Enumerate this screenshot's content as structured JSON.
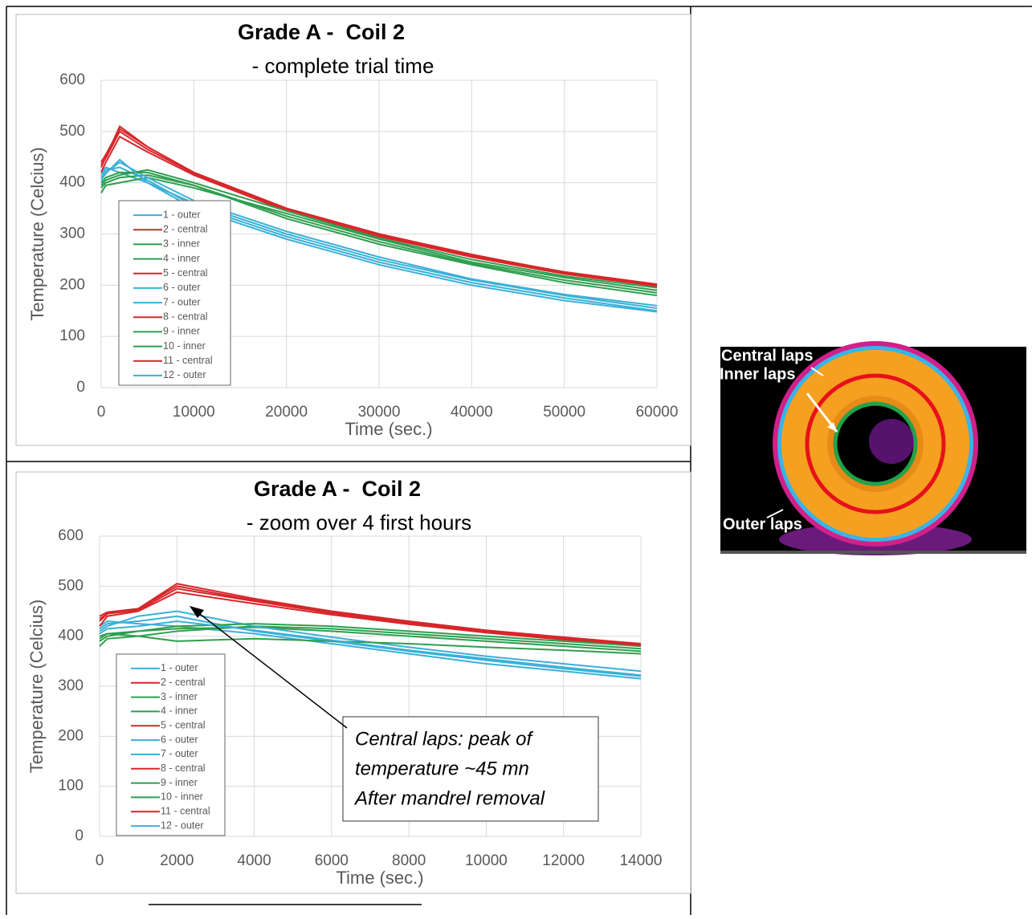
{
  "chart_data": [
    {
      "type": "line",
      "title": "Grade A -  Coil 2",
      "subtitle": "- complete trial time",
      "x_label": "Time (sec.)",
      "y_label": "Temperature (Celcius)",
      "x": [
        0,
        500,
        2000,
        5000,
        10000,
        20000,
        30000,
        40000,
        50000,
        60000
      ],
      "xlim": [
        0,
        60000
      ],
      "xticks": [
        0,
        10000,
        20000,
        30000,
        40000,
        50000,
        60000
      ],
      "ylim": [
        0,
        600
      ],
      "yticks": [
        0,
        100,
        200,
        300,
        400,
        500,
        600
      ],
      "grid": true,
      "series": [
        {
          "name": "1 - outer",
          "color": "#3ab0d8",
          "values": [
            420,
            430,
            420,
            400,
            360,
            300,
            250,
            210,
            180,
            155
          ]
        },
        {
          "name": "2 - central",
          "color": "#d7262a",
          "values": [
            430,
            450,
            510,
            470,
            420,
            350,
            300,
            260,
            225,
            200
          ]
        },
        {
          "name": "3 - inner",
          "color": "#2e9e4f",
          "values": [
            390,
            400,
            410,
            415,
            395,
            330,
            280,
            240,
            205,
            180
          ]
        },
        {
          "name": "4 - inner",
          "color": "#2e9e4f",
          "values": [
            380,
            395,
            400,
            410,
            390,
            340,
            290,
            245,
            215,
            190
          ]
        },
        {
          "name": "5 - central",
          "color": "#d7262a",
          "values": [
            420,
            440,
            490,
            460,
            415,
            345,
            295,
            255,
            222,
            198
          ]
        },
        {
          "name": "6 - outer",
          "color": "#3ab0d8",
          "values": [
            410,
            420,
            440,
            410,
            365,
            305,
            255,
            212,
            182,
            160
          ]
        },
        {
          "name": "7 - outer",
          "color": "#3ab0d8",
          "values": [
            415,
            425,
            430,
            405,
            355,
            295,
            245,
            205,
            175,
            150
          ]
        },
        {
          "name": "8 - central",
          "color": "#d7262a",
          "values": [
            440,
            455,
            505,
            470,
            420,
            350,
            300,
            258,
            226,
            202
          ]
        },
        {
          "name": "9 - inner",
          "color": "#2e9e4f",
          "values": [
            400,
            410,
            420,
            420,
            395,
            335,
            285,
            242,
            210,
            185
          ]
        },
        {
          "name": "10 - inner",
          "color": "#2e9e4f",
          "values": [
            395,
            405,
            415,
            425,
            400,
            345,
            292,
            250,
            218,
            195
          ]
        },
        {
          "name": "11 - central",
          "color": "#d7262a",
          "values": [
            435,
            448,
            500,
            465,
            418,
            348,
            298,
            256,
            224,
            200
          ]
        },
        {
          "name": "12 - outer",
          "color": "#3ab0d8",
          "values": [
            405,
            418,
            445,
            400,
            350,
            290,
            240,
            200,
            170,
            148
          ]
        }
      ]
    },
    {
      "type": "line",
      "title": "Grade A -  Coil 2",
      "subtitle": "- zoom over 4 first hours",
      "x_label": "Time (sec.)",
      "y_label": "Temperature (Celcius)",
      "annotation": [
        "Central laps: peak of",
        "temperature ~45 mn",
        "After mandrel removal"
      ],
      "x": [
        0,
        200,
        1000,
        2000,
        4000,
        6000,
        8000,
        10000,
        12000,
        14000
      ],
      "xlim": [
        0,
        14000
      ],
      "xticks": [
        0,
        2000,
        4000,
        6000,
        8000,
        10000,
        12000,
        14000
      ],
      "ylim": [
        0,
        600
      ],
      "yticks": [
        0,
        100,
        200,
        300,
        400,
        500,
        600
      ],
      "grid": true,
      "series": [
        {
          "name": "1 - outer",
          "color": "#3ab0d8",
          "values": [
            420,
            430,
            425,
            420,
            405,
            385,
            365,
            345,
            330,
            315
          ]
        },
        {
          "name": "2 - central",
          "color": "#d7262a",
          "values": [
            430,
            445,
            455,
            505,
            475,
            450,
            430,
            412,
            398,
            385
          ]
        },
        {
          "name": "3 - inner",
          "color": "#2e9e4f",
          "values": [
            390,
            400,
            410,
            415,
            418,
            410,
            400,
            390,
            380,
            370
          ]
        },
        {
          "name": "4 - inner",
          "color": "#2e9e4f",
          "values": [
            380,
            395,
            400,
            410,
            420,
            415,
            405,
            395,
            385,
            375
          ]
        },
        {
          "name": "5 - central",
          "color": "#d7262a",
          "values": [
            420,
            440,
            450,
            488,
            465,
            443,
            424,
            407,
            393,
            380
          ]
        },
        {
          "name": "6 - outer",
          "color": "#3ab0d8",
          "values": [
            410,
            420,
            440,
            450,
            420,
            398,
            378,
            360,
            345,
            330
          ]
        },
        {
          "name": "7 - outer",
          "color": "#3ab0d8",
          "values": [
            415,
            425,
            430,
            440,
            410,
            390,
            370,
            352,
            335,
            320
          ]
        },
        {
          "name": "8 - central",
          "color": "#d7262a",
          "values": [
            440,
            448,
            455,
            500,
            472,
            448,
            428,
            410,
            396,
            383
          ]
        },
        {
          "name": "9 - inner",
          "color": "#2e9e4f",
          "values": [
            400,
            405,
            400,
            390,
            395,
            390,
            385,
            378,
            372,
            365
          ]
        },
        {
          "name": "10 - inner",
          "color": "#2e9e4f",
          "values": [
            395,
            405,
            410,
            420,
            425,
            420,
            410,
            400,
            390,
            380
          ]
        },
        {
          "name": "11 - central",
          "color": "#d7262a",
          "values": [
            435,
            445,
            452,
            495,
            470,
            446,
            426,
            409,
            395,
            382
          ]
        },
        {
          "name": "12 - outer",
          "color": "#3ab0d8",
          "values": [
            405,
            415,
            420,
            430,
            412,
            392,
            372,
            355,
            338,
            322
          ]
        }
      ]
    }
  ],
  "image": {
    "labels": [
      "Central laps",
      "Inner laps",
      "Outer laps"
    ]
  }
}
